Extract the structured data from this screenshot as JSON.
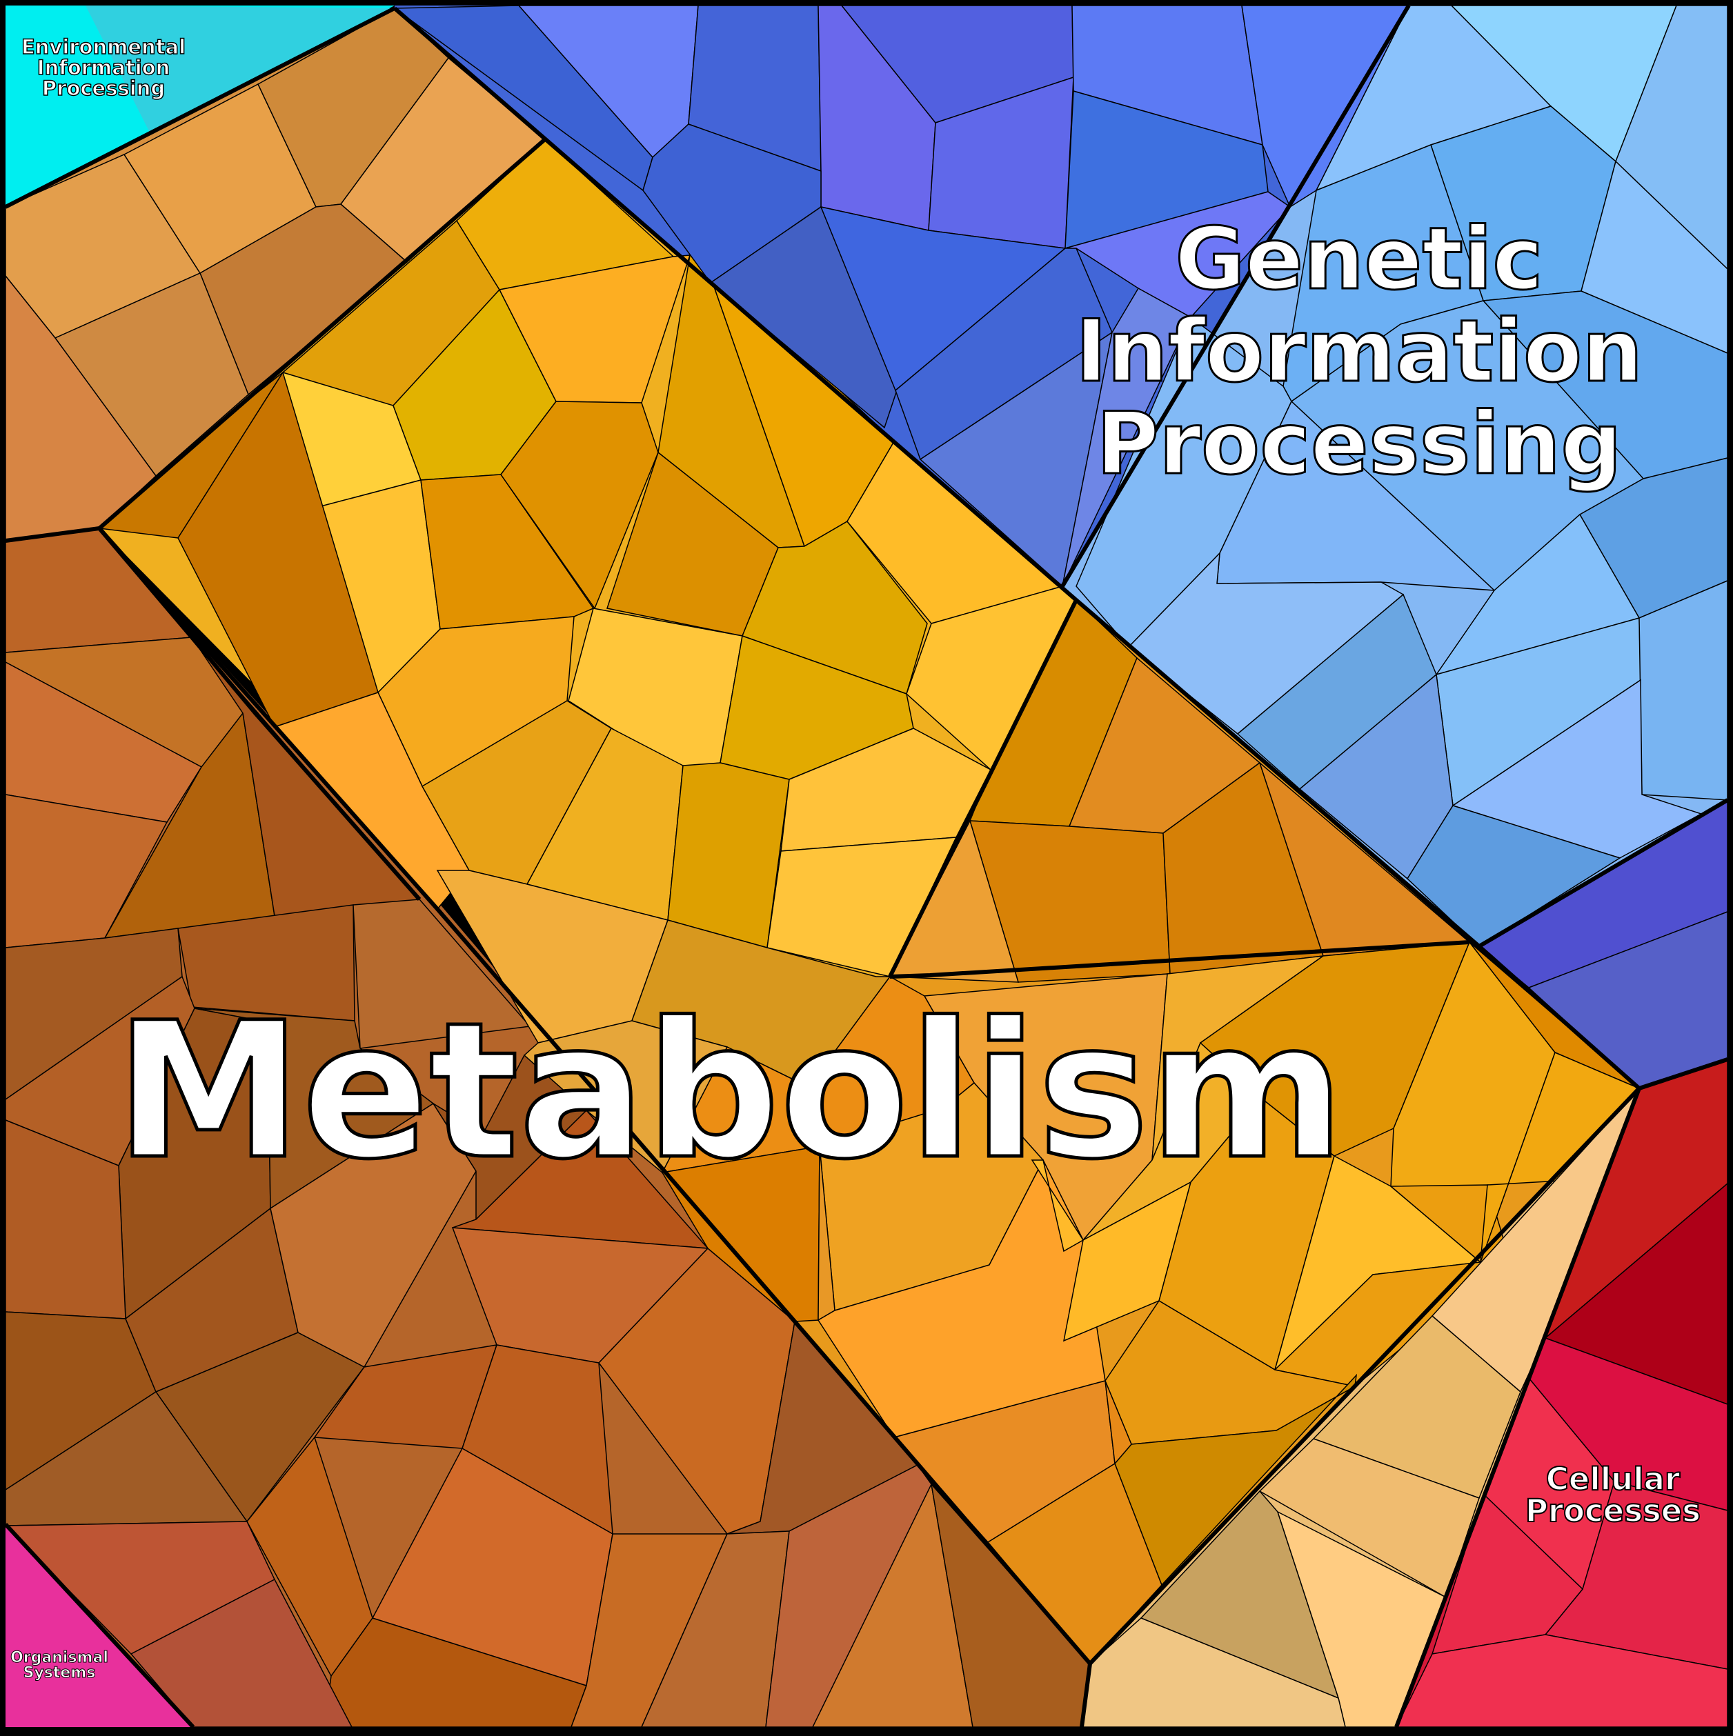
{
  "labels": {
    "environmental": [
      "Environmental",
      "Information",
      "Processing"
    ],
    "genetic": [
      "Genetic",
      "Information",
      "Processing"
    ],
    "metabolism": "Metabolism",
    "cellular": [
      "Cellular",
      "Processes"
    ],
    "organismal": [
      "Organismal",
      "Systems"
    ]
  },
  "colors": {
    "environmental": "#00F0F0",
    "genetic_dark": "#3D64D8",
    "genetic_light": "#86BEF8",
    "metabolism_yellow": "#F2B419",
    "metabolism_orange": "#E08A18",
    "metabolism_brown": "#B0642A",
    "cellular_red": "#D01830",
    "cellular_beige": "#EFC27A",
    "organismal": "#E8309C"
  }
}
